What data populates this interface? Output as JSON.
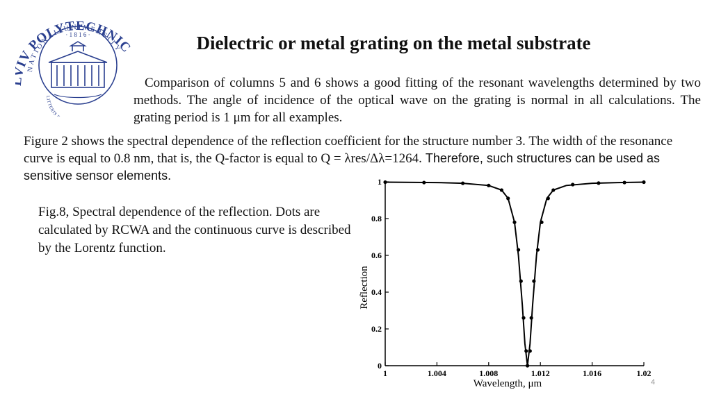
{
  "logo": {
    "arc_text": "NATIONAL UNIVERSITY",
    "name_text": "LVIV POLYTECHNIC",
    "year_text": "· 1 8 1 6 ·",
    "motto_text": "LITTERIS ET ARTIBUS",
    "color": "#2a3f8f"
  },
  "slide": {
    "title": "Dielectric or metal grating on the metal substrate",
    "paragraph1": "Comparison of columns 5 and 6 shows a good fitting of the resonant wavelengths determined by two methods. The angle of incidence of the optical wave on the grating is normal in all calculations. The grating period is 1 μm for all examples.",
    "paragraph2_serif": "Figure 2 shows the spectral dependence of the reflection coefficient for the structure number 3. The width of the resonance curve is equal to 0.8 nm, that is, the Q-factor is equal to Q = λres/Δλ=1264.",
    "paragraph2_sans": " Therefore, such structures can be used as sensitive sensor elements.",
    "caption": "Fig.8, Spectral dependence of the reflection. Dots are calculated by RCWA and the continuous curve is described by the Lorentz function.",
    "page_number": "4"
  },
  "chart_data": {
    "type": "line",
    "title": "",
    "xlabel": "Wavelength, μm",
    "ylabel": "Reflection",
    "xlim": [
      1.0,
      1.02
    ],
    "ylim": [
      0,
      1
    ],
    "x_ticks": [
      "1",
      "1.004",
      "1.008",
      "1.012",
      "1.016",
      "1.02"
    ],
    "y_ticks": [
      "0",
      "0.2",
      "0.4",
      "0.6",
      "0.8",
      "1"
    ],
    "grid": false,
    "line_color": "#000000",
    "series": [
      {
        "style": "line",
        "x": [
          1.0,
          1.004,
          1.006,
          1.008,
          1.009,
          1.0095,
          1.01,
          1.0103,
          1.0106,
          1.0108,
          1.011,
          1.0112,
          1.0114,
          1.0117,
          1.012,
          1.0125,
          1.013,
          1.014,
          1.016,
          1.018,
          1.02
        ],
        "y": [
          0.998,
          0.996,
          0.992,
          0.98,
          0.955,
          0.91,
          0.78,
          0.6,
          0.33,
          0.12,
          0.0,
          0.12,
          0.33,
          0.6,
          0.78,
          0.91,
          0.955,
          0.98,
          0.992,
          0.996,
          0.998
        ]
      },
      {
        "style": "dots",
        "x": [
          1.0,
          1.003,
          1.006,
          1.008,
          1.009,
          1.0095,
          1.01,
          1.0103,
          1.0105,
          1.0107,
          1.0109,
          1.011,
          1.0112,
          1.0113,
          1.0115,
          1.0118,
          1.0121,
          1.0126,
          1.013,
          1.0145,
          1.0165,
          1.0185,
          1.02
        ],
        "y": [
          0.998,
          0.996,
          0.992,
          0.98,
          0.955,
          0.91,
          0.78,
          0.63,
          0.46,
          0.26,
          0.08,
          0.0,
          0.08,
          0.26,
          0.46,
          0.63,
          0.78,
          0.91,
          0.955,
          0.985,
          0.993,
          0.996,
          0.998
        ]
      }
    ]
  }
}
